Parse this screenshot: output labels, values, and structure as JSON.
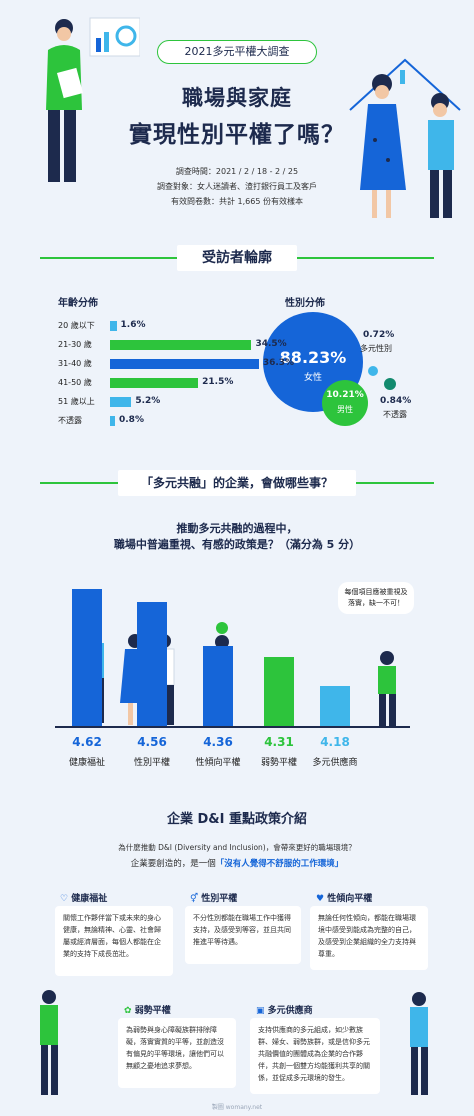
{
  "header": {
    "badge": "2021多元平權大調查",
    "title_line1": "職場與家庭",
    "title_line2": "實現性別平權了嗎？",
    "meta_date": "調查時間：2021 / 2 / 18 - 2 / 25",
    "meta_target": "調查對象：女人迷讀者、渣打銀行員工及客戶",
    "meta_sample": "有效問卷數：共計 1,665 份有效樣本"
  },
  "profile": {
    "heading": "受訪者輪廓",
    "age_title": "年齡分佈",
    "gender_title": "性別分佈"
  },
  "chart_data": [
    {
      "type": "bar",
      "orientation": "horizontal",
      "title": "年齡分佈",
      "categories": [
        "20 歲以下",
        "21-30 歲",
        "31-40 歲",
        "41-50 歲",
        "51 歲以上",
        "不透露"
      ],
      "values": [
        1.6,
        34.5,
        36.3,
        21.5,
        5.2,
        0.8
      ],
      "value_labels": [
        "1.6%",
        "34.5%",
        "36.3%",
        "21.5%",
        "5.2%",
        "0.8%"
      ],
      "colors": [
        "#3fb6ea",
        "#2dc43c",
        "#1565d8",
        "#2dc43c",
        "#3fb6ea",
        "#3fb6ea"
      ]
    },
    {
      "type": "pie",
      "title": "性別分佈",
      "categories": [
        "女性",
        "男性",
        "多元性別",
        "不透露"
      ],
      "values": [
        88.23,
        10.21,
        0.72,
        0.84
      ],
      "value_labels": [
        "88.23%",
        "10.21%",
        "0.72%",
        "0.84%"
      ],
      "colors": [
        "#1565d8",
        "#2dc43c",
        "#3fb6ea",
        "#128a6e"
      ]
    },
    {
      "type": "bar",
      "title": "推動多元共融的過程中，職場中普遍重視、有感的政策是？（滿分為 5 分）",
      "categories": [
        "健康福祉",
        "性別平權",
        "性傾向平權",
        "弱勢平權",
        "多元供應商"
      ],
      "values": [
        4.62,
        4.56,
        4.36,
        4.31,
        4.18
      ],
      "value_labels": [
        "4.62",
        "4.56",
        "4.36",
        "4.31",
        "4.18"
      ],
      "colors": [
        "#1565d8",
        "#1565d8",
        "#1565d8",
        "#2dc43c",
        "#3fb6ea"
      ]
    }
  ],
  "policy_section": {
    "heading": "「多元共融」的企業，會做哪些事？",
    "question_line1": "推動多元共融的過程中，",
    "question_line2": "職場中普遍重視、有感的政策是？（滿分為 5 分）",
    "bubble": "每個項目應被重視及落實，缺一不可！"
  },
  "intro": {
    "heading": "企業 D&I 重點政策介紹",
    "line1": "為什麼推動 D&I (Diversity and Inclusion)，會帶來更好的職場環境？",
    "line2_prefix": "企業要創造的，是一個",
    "line2_highlight": "「沒有人覺得不舒服的工作環境」"
  },
  "cards": [
    {
      "title": "健康福祉",
      "icon": "heart-icon",
      "text": "關懷工作夥伴當下或未來的身心健康，無論精神、心靈、社會歸屬或經濟層面，每個人都能在企業的支持下成長茁壯。"
    },
    {
      "title": "性別平權",
      "icon": "gender-icon",
      "text": "不分性別都能在職場工作中獲得支持，及感受到等容，並且共同推進平等待遇。"
    },
    {
      "title": "性傾向平權",
      "icon": "heart-outline-icon",
      "text": "無論任何性傾向，都能在職場環境中感受到能成為完整的自己，及感受到企業組織的全力支持與尊重。"
    },
    {
      "title": "弱勢平權",
      "icon": "flower-icon",
      "text": "為弱勢與身心障礙族群排除障礙，落實實質的平等，並創造沒有偏見的平等環境，讓他們可以無顧之憂地追求夢想。"
    },
    {
      "title": "多元供應商",
      "icon": "building-icon",
      "text": "支持供應商的多元組成，如少數族群、婦女、弱勢族群，或是信仰多元共融價值的團體成為企業的合作夥伴，共創一個雙方均能獲利共享的關係，並促成多元環境的發生。"
    }
  ],
  "footer": {
    "credit": "製圖 womany.net"
  }
}
